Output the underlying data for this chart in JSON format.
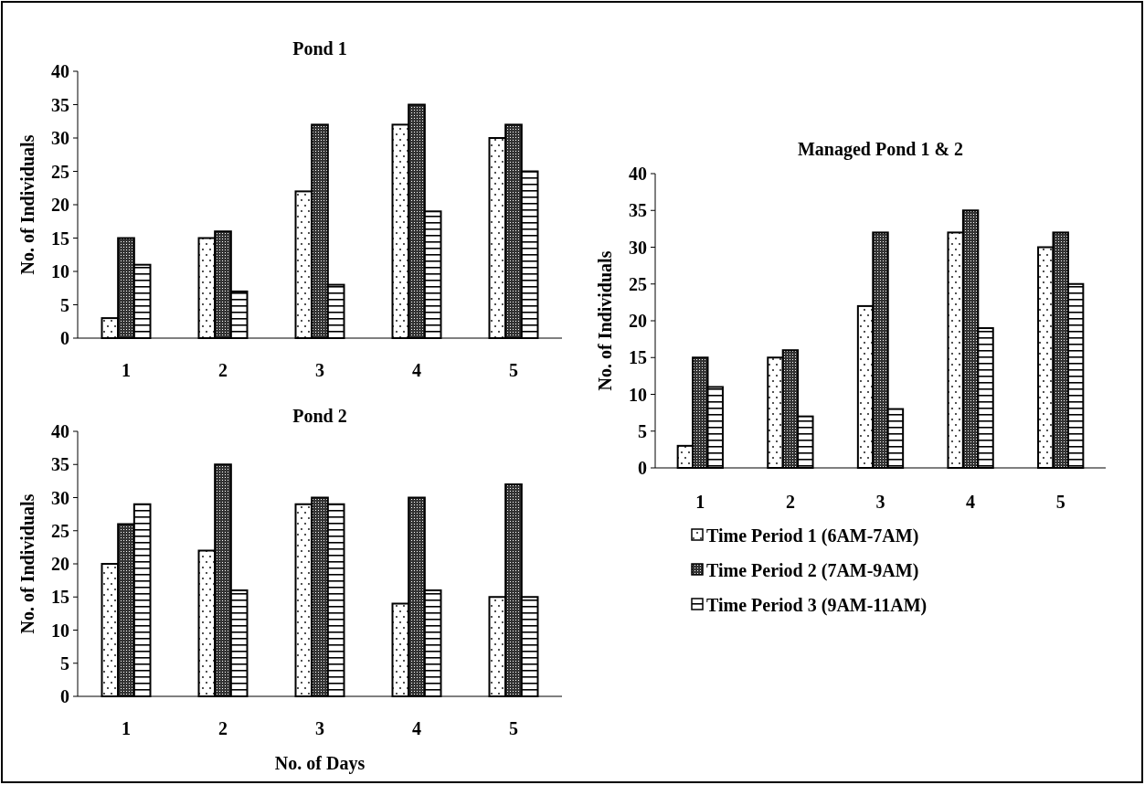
{
  "chart_data": [
    {
      "type": "bar",
      "title": "Pond 1",
      "ylabel": "No. of Individuals",
      "categories": [
        "1",
        "2",
        "3",
        "4",
        "5"
      ],
      "ylim": [
        0,
        40
      ],
      "yticks": [
        0,
        5,
        10,
        15,
        20,
        25,
        30,
        35,
        40
      ],
      "grid": false,
      "legend": false,
      "series": [
        {
          "color": "#000000",
          "values": [
            3,
            15,
            22,
            32,
            30
          ]
        },
        {
          "color": "#000000",
          "values": [
            15,
            16,
            32,
            35,
            32
          ]
        },
        {
          "color": "#000000",
          "values": [
            11,
            7,
            8,
            19,
            25
          ]
        }
      ]
    },
    {
      "type": "bar",
      "title": "Pond 2",
      "xlabel": "No. of Days",
      "ylabel": "No. of Individuals",
      "categories": [
        "1",
        "2",
        "3",
        "4",
        "5"
      ],
      "ylim": [
        0,
        40
      ],
      "yticks": [
        0,
        5,
        10,
        15,
        20,
        25,
        30,
        35,
        40
      ],
      "grid": false,
      "legend": false,
      "series": [
        {
          "color": "#000000",
          "values": [
            20,
            22,
            29,
            14,
            15
          ]
        },
        {
          "color": "#000000",
          "values": [
            26,
            35,
            30,
            30,
            32
          ]
        },
        {
          "color": "#000000",
          "values": [
            29,
            16,
            29,
            16,
            15
          ]
        }
      ]
    },
    {
      "type": "bar",
      "title": "Managed Pond 1 & 2",
      "ylabel": "No. of Individuals",
      "categories": [
        "1",
        "2",
        "3",
        "4",
        "5"
      ],
      "ylim": [
        0,
        40
      ],
      "yticks": [
        0,
        5,
        10,
        15,
        20,
        25,
        30,
        35,
        40
      ],
      "grid": false,
      "legend": "bottom",
      "series": [
        {
          "name": "Time Period 1 (6AM-7AM)",
          "color": "#000000",
          "values": [
            3,
            15,
            22,
            32,
            30
          ]
        },
        {
          "name": "Time Period 2 (7AM-9AM)",
          "color": "#000000",
          "values": [
            15,
            16,
            32,
            35,
            32
          ]
        },
        {
          "name": "Time Period 3 (9AM-11AM)",
          "color": "#000000",
          "values": [
            11,
            7,
            8,
            19,
            25
          ]
        }
      ]
    }
  ]
}
